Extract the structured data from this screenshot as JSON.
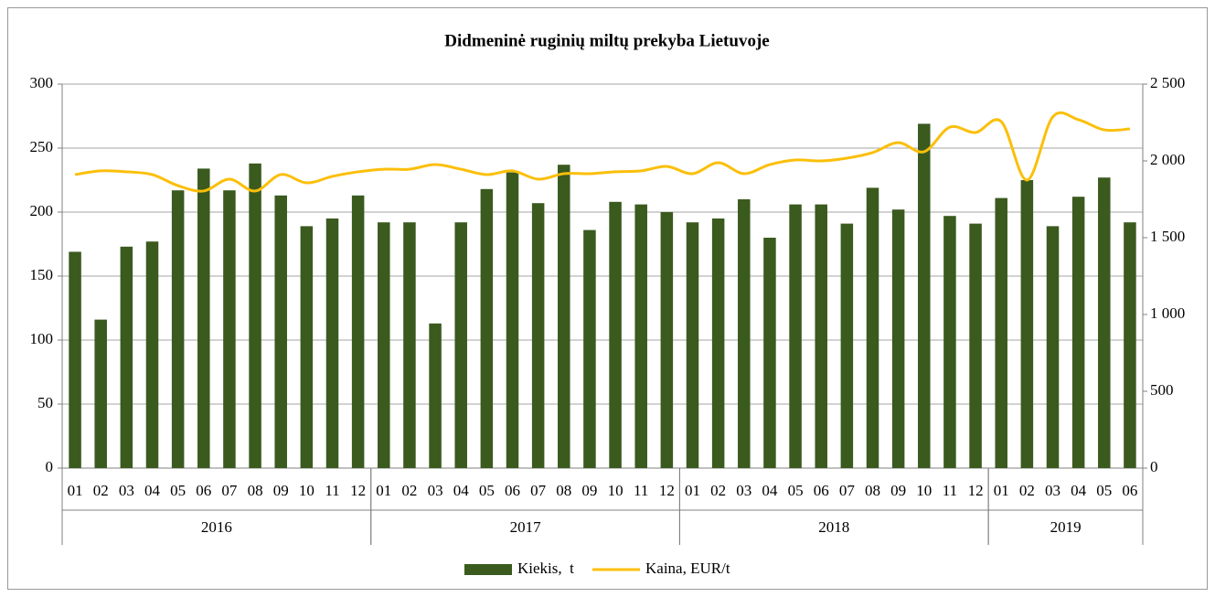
{
  "chart_data": {
    "type": "bar-line",
    "title": "Didmeninė ruginių miltų prekyba Lietuvoje",
    "groups": [
      {
        "label": "2016",
        "categories": [
          "01",
          "02",
          "03",
          "04",
          "05",
          "06",
          "07",
          "08",
          "09",
          "10",
          "11",
          "12"
        ]
      },
      {
        "label": "2017",
        "categories": [
          "01",
          "02",
          "03",
          "04",
          "05",
          "06",
          "07",
          "08",
          "09",
          "10",
          "11",
          "12"
        ]
      },
      {
        "label": "2018",
        "categories": [
          "01",
          "02",
          "03",
          "04",
          "05",
          "06",
          "07",
          "08",
          "09",
          "10",
          "11",
          "12"
        ]
      },
      {
        "label": "2019",
        "categories": [
          "01",
          "02",
          "03",
          "04",
          "05",
          "06"
        ]
      }
    ],
    "series": [
      {
        "name": "Kiekis,  t",
        "type": "bar",
        "color": "#3a5a1e",
        "values": [
          169,
          116,
          173,
          177,
          217,
          234,
          217,
          238,
          213,
          189,
          195,
          213,
          192,
          192,
          113,
          192,
          218,
          231,
          207,
          237,
          186,
          208,
          206,
          200,
          192,
          195,
          210,
          180,
          206,
          206,
          191,
          219,
          202,
          269,
          197,
          191,
          211,
          225,
          189,
          212,
          227,
          192
        ]
      },
      {
        "name": "Kaina, EUR/t",
        "type": "line",
        "axis": "y2",
        "color": "#fbbf0a",
        "values": [
          1911,
          1935,
          1929,
          1911,
          1839,
          1804,
          1881,
          1804,
          1911,
          1857,
          1899,
          1929,
          1946,
          1946,
          1976,
          1946,
          1911,
          1935,
          1881,
          1917,
          1917,
          1929,
          1935,
          1964,
          1917,
          1988,
          1917,
          1976,
          2006,
          2000,
          2018,
          2054,
          2119,
          2060,
          2220,
          2185,
          2256,
          1875,
          2286,
          2268,
          2202,
          2208
        ]
      }
    ],
    "ylim": [
      0,
      300
    ],
    "yticks": [
      0,
      50,
      100,
      150,
      200,
      250,
      300
    ],
    "y2lim": [
      0,
      2500
    ],
    "y2ticks": [
      0,
      500,
      {
        "value": 1000,
        "label": "1 000"
      },
      {
        "value": 1500,
        "label": "1 500"
      },
      {
        "value": 2000,
        "label": "2 000"
      },
      {
        "value": 2500,
        "label": "2 500"
      }
    ],
    "grid": true,
    "legend": "bottom"
  }
}
